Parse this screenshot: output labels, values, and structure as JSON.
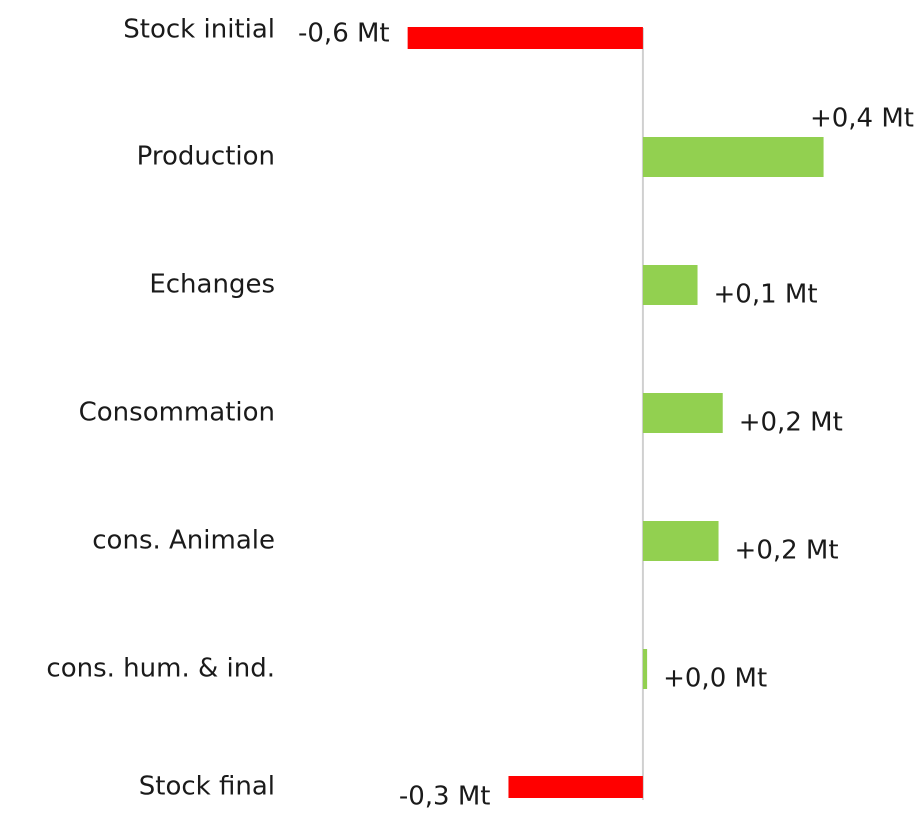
{
  "chart_data": {
    "type": "hbar",
    "categories": [
      "Stock initial",
      "Production",
      "Echanges",
      "Consommation",
      "cons. Animale",
      "cons. hum. & ind.",
      "Stock final"
    ],
    "values": [
      -0.56,
      0.43,
      0.13,
      0.19,
      0.18,
      0.01,
      -0.32
    ],
    "value_labels": [
      "-0,6 Mt",
      "+0,4 Mt",
      "+0,1 Mt",
      "+0,2 Mt",
      "+0,2 Mt",
      "+0,0 Mt",
      "-0,3 Mt"
    ],
    "colors": [
      "#ff0000",
      "#92d050",
      "#92d050",
      "#92d050",
      "#92d050",
      "#92d050",
      "#ff0000"
    ],
    "xlim": [
      -0.84,
      0.65
    ]
  }
}
